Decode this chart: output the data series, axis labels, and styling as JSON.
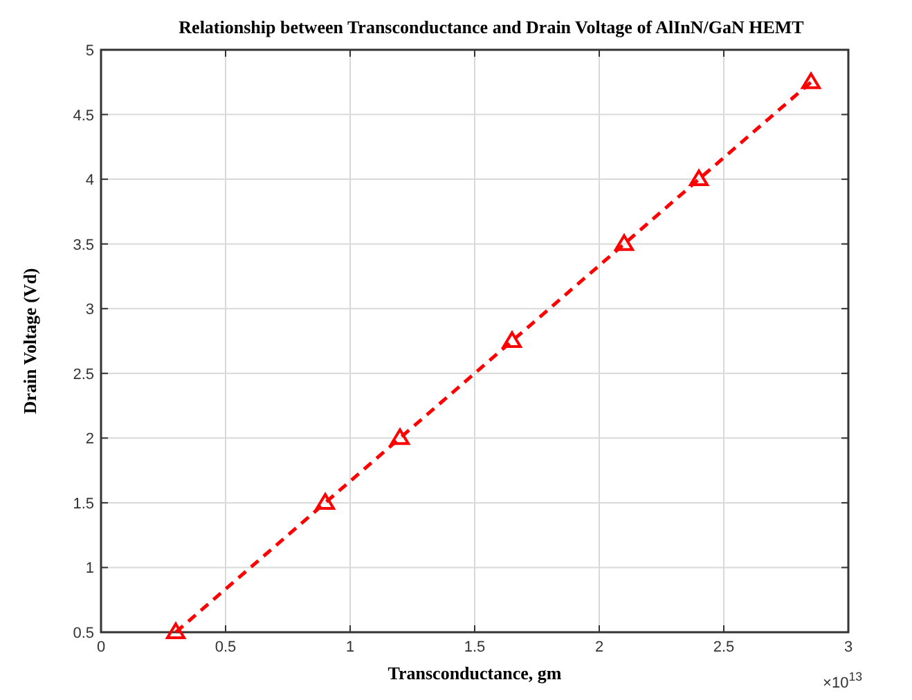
{
  "chart_data": {
    "type": "line",
    "title": "Relationship between Transconductance and Drain Voltage of AlInN/GaN HEMT",
    "xlabel": "Transconductance, gm",
    "ylabel": "Drain Voltage (Vd)",
    "x": [
      0.3,
      0.9,
      1.2,
      1.65,
      2.1,
      2.4,
      2.85
    ],
    "series": [
      {
        "color": "#ff0000",
        "values": [
          0.5,
          1.5,
          2,
          2.75,
          3.5,
          4,
          4.75
        ]
      }
    ],
    "xlim": [
      0,
      3
    ],
    "xticks": [
      0,
      0.5,
      1,
      1.5,
      2,
      2.5,
      3
    ],
    "ylim": [
      0.5,
      5
    ],
    "yticks": [
      0.5,
      1,
      1.5,
      2,
      2.5,
      3,
      3.5,
      4,
      4.5,
      5
    ],
    "grid": true,
    "marker": "triangle",
    "line_style": "dashed",
    "annotations": [
      "×10$^{13}$"
    ]
  }
}
